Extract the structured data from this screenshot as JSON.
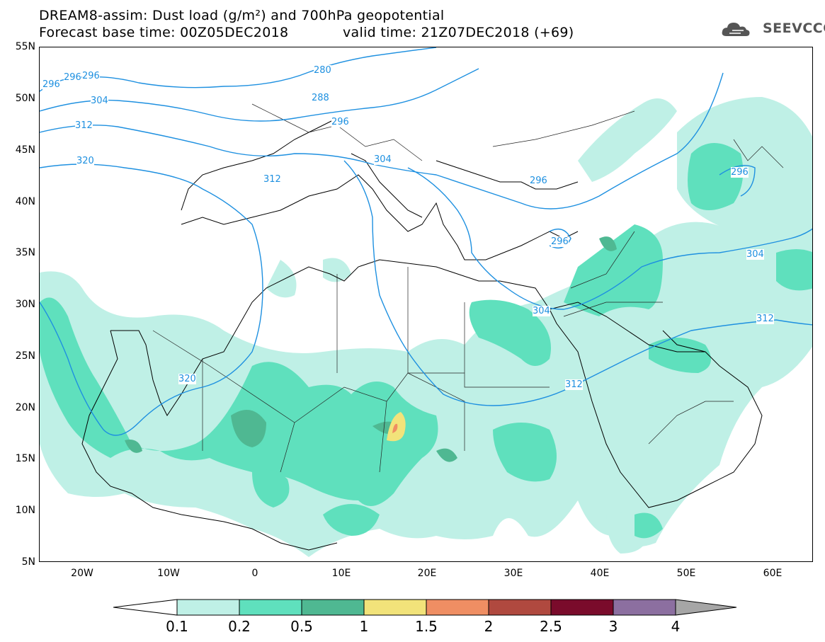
{
  "title": {
    "line1": "DREAM8-assim: Dust load (g/m²) and 700hPa geopotential",
    "line2a": "Forecast base time: 00Z05DEC2018",
    "line2b": "valid time: 21Z07DEC2018 (+69)"
  },
  "logo": {
    "text": "SEEVCCC",
    "icon": "cloud-icon"
  },
  "axes": {
    "lat_labels": [
      "55N",
      "50N",
      "45N",
      "40N",
      "35N",
      "30N",
      "25N",
      "20N",
      "15N",
      "10N",
      "5N"
    ],
    "lon_labels": [
      "20W",
      "10W",
      "0",
      "10E",
      "20E",
      "30E",
      "40E",
      "50E",
      "60E"
    ]
  },
  "contour_labels": [
    "296",
    "296",
    "296",
    "280",
    "288",
    "296",
    "304",
    "312",
    "320",
    "312",
    "304",
    "296",
    "296",
    "304",
    "312",
    "320",
    "296",
    "304",
    "312"
  ],
  "colorbar": {
    "labels": [
      "0.1",
      "0.2",
      "0.5",
      "1",
      "1.5",
      "2",
      "2.5",
      "3",
      "4"
    ],
    "colors": [
      "#ffffff",
      "#bff0e6",
      "#5fe0bd",
      "#4fb892",
      "#f2e37a",
      "#ef8e63",
      "#b0493f",
      "#7a0b2b",
      "#8c6fa0",
      "#a6a6a6"
    ]
  }
}
